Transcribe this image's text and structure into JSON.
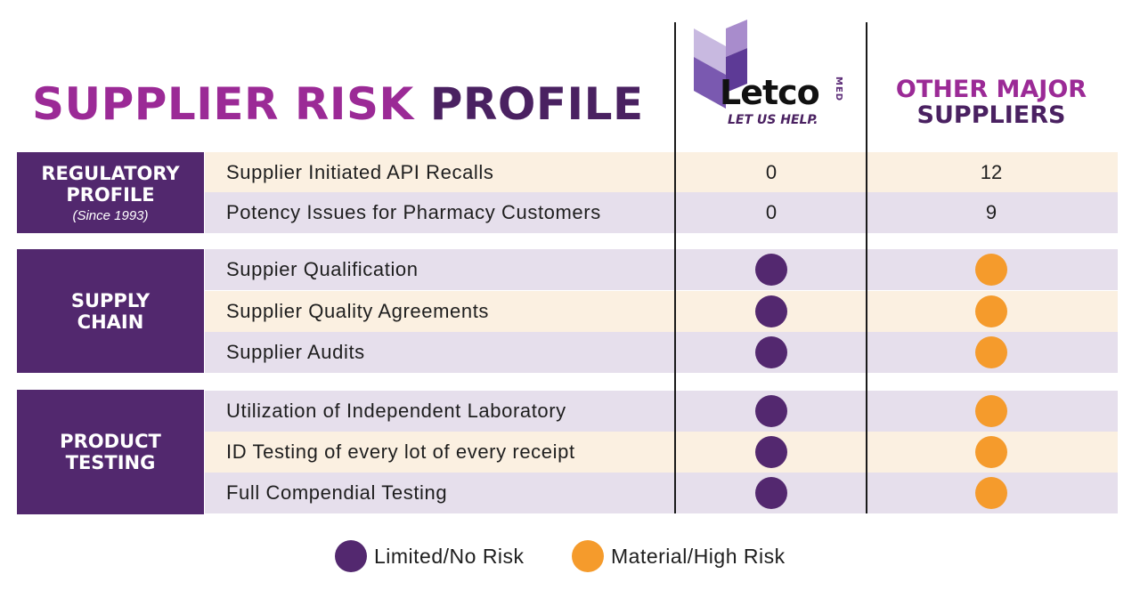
{
  "title": {
    "part1": "SUPPLIER RISK ",
    "part2": "PROFILE"
  },
  "logo": {
    "wordmark": "Letco",
    "med": "MED",
    "tagline": "LET US HELP."
  },
  "other_header": {
    "line1": "OTHER MAJOR",
    "line2": "SUPPLIERS"
  },
  "groups": [
    {
      "label_lines": [
        "REGULATORY",
        "PROFILE"
      ],
      "sub": "(Since 1993)",
      "rows": [
        {
          "label": "Supplier Initiated API Recalls",
          "letco": "0",
          "other": "12"
        },
        {
          "label": "Potency Issues for Pharmacy Customers",
          "letco": "0",
          "other": "9"
        }
      ]
    },
    {
      "label_lines": [
        "SUPPLY",
        "CHAIN"
      ],
      "rows": [
        {
          "label": "Suppier Qualification",
          "letco": "limited",
          "other": "material"
        },
        {
          "label": "Supplier Quality Agreements",
          "letco": "limited",
          "other": "material"
        },
        {
          "label": "Supplier Audits",
          "letco": "limited",
          "other": "material"
        }
      ]
    },
    {
      "label_lines": [
        "PRODUCT",
        "TESTING"
      ],
      "rows": [
        {
          "label": "Utilization of Independent Laboratory",
          "letco": "limited",
          "other": "material"
        },
        {
          "label": "ID Testing of every lot of every receipt",
          "letco": "limited",
          "other": "material"
        },
        {
          "label": "Full Compendial Testing",
          "letco": "limited",
          "other": "material"
        }
      ]
    }
  ],
  "legend": {
    "limited": {
      "label": "Limited/No Risk",
      "icon": "purple-dot-icon"
    },
    "material": {
      "label": "Material/High Risk",
      "icon": "orange-dot-icon"
    }
  },
  "colors": {
    "title_magenta": "#9b2a96",
    "title_purple": "#4a2161",
    "group_purple": "#52286e",
    "row_cream": "#fbf0e1",
    "row_lavender": "#e6dfec",
    "dot_purple": "#53286f",
    "dot_orange": "#f59b2c"
  }
}
